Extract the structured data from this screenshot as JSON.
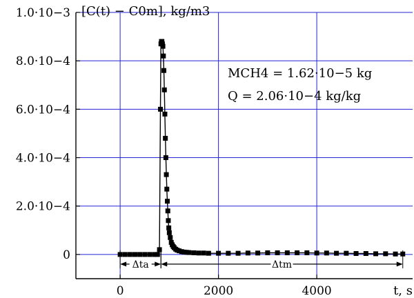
{
  "chart_data": {
    "type": "scatter",
    "title": "",
    "ylabel": "[C(t) − C0m], kg/m3",
    "xlabel": "t, s",
    "xlim": [
      -900,
      5950
    ],
    "ylim": [
      -0.0001,
      0.001
    ],
    "grid": true,
    "x_ticks": [
      {
        "value": 0,
        "label": "0"
      },
      {
        "value": 2000,
        "label": "2000"
      },
      {
        "value": 4000,
        "label": "4000"
      }
    ],
    "y_ticks": [
      {
        "value": 0,
        "label": "0"
      },
      {
        "value": 0.0002,
        "label": "2.0·10−4"
      },
      {
        "value": 0.0004,
        "label": "4.0·10−4"
      },
      {
        "value": 0.0006,
        "label": "6.0·10−4"
      },
      {
        "value": 0.0008,
        "label": "8.0·10−4"
      },
      {
        "value": 0.001,
        "label": "1.0·10−3"
      }
    ],
    "annotations": {
      "mass_line": "MCH4 = 1.62·10−5 kg",
      "q_line": "Q = 2.06·10−4 kg/kg",
      "delta_ta": "Δta",
      "delta_tm": "Δtm"
    },
    "intervals": {
      "delta_ta": [
        0,
        830
      ],
      "delta_tm": [
        830,
        5750
      ]
    },
    "series": [
      {
        "x": [
          0,
          100,
          200,
          300,
          400,
          500,
          600,
          700,
          760,
          800,
          820,
          830,
          840,
          850,
          860,
          870,
          880,
          890,
          900,
          910,
          920,
          930,
          940,
          950,
          960,
          970,
          980,
          990,
          1000,
          1020,
          1040,
          1060,
          1080,
          1100,
          1130,
          1160,
          1200,
          1250,
          1300,
          1350,
          1400,
          1500,
          1600,
          1700,
          1800,
          2000,
          2200,
          2400,
          2600,
          2800,
          3000,
          3200,
          3400,
          3600,
          3800,
          4000,
          4200,
          4400,
          4600,
          4800,
          5000,
          5200,
          5400,
          5600,
          5750
        ],
        "y": [
          0,
          0,
          0,
          0,
          0,
          0,
          0,
          0,
          0,
          2e-05,
          0.0006,
          0.00087,
          0.00088,
          0.00088,
          0.00087,
          0.00086,
          0.00082,
          0.00076,
          0.00068,
          0.00058,
          0.00048,
          0.0004,
          0.00033,
          0.00027,
          0.00022,
          0.00018,
          0.00014,
          0.00011,
          9e-05,
          7e-05,
          5e-05,
          4e-05,
          3.3e-05,
          2.8e-05,
          2.2e-05,
          1.8e-05,
          1.5e-05,
          1.2e-05,
          1e-05,
          9e-06,
          8e-06,
          7e-06,
          6e-06,
          6e-06,
          5e-06,
          5e-06,
          5e-06,
          5e-06,
          6e-06,
          6e-06,
          7e-06,
          7e-06,
          7e-06,
          7e-06,
          7e-06,
          6e-06,
          6e-06,
          5e-06,
          5e-06,
          4e-06,
          4e-06,
          3e-06,
          3e-06,
          2e-06,
          2e-06
        ]
      }
    ]
  }
}
